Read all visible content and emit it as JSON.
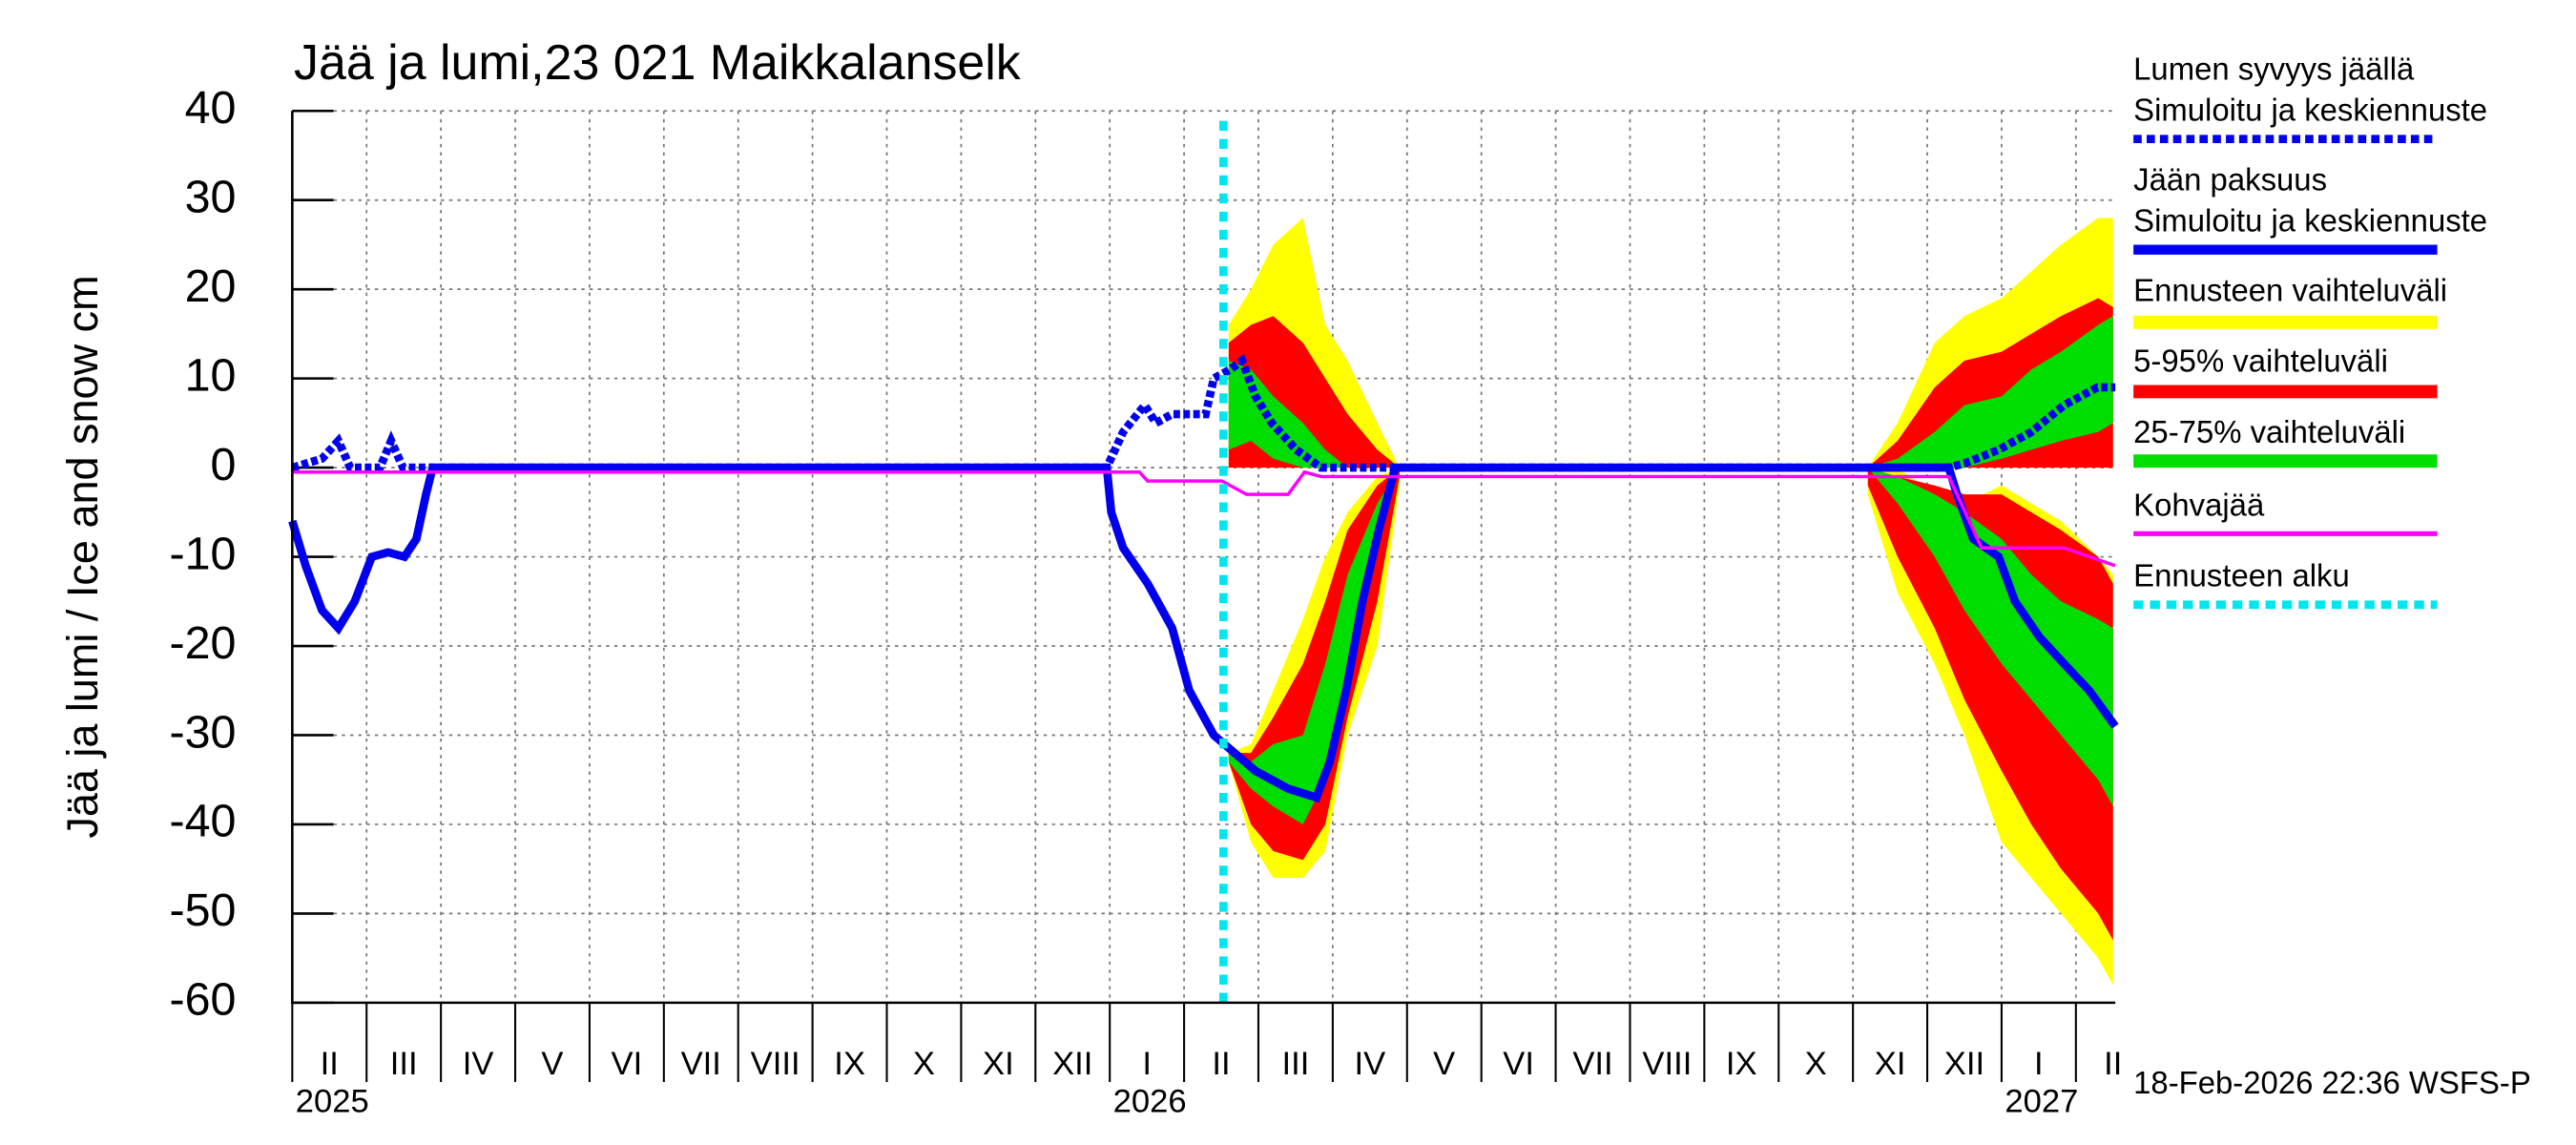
{
  "chart_data": {
    "type": "ice-snow",
    "title": "Jää ja lumi,23 021 Maikkalanselk",
    "y_label": "Jää ja lumi / Ice and snow    cm",
    "footer": "18-Feb-2026 22:36 WSFS-P",
    "xlim": [
      0,
      24.53
    ],
    "xticks": [
      0,
      1,
      2,
      3,
      4,
      5,
      6,
      7,
      8,
      9,
      10,
      11,
      12,
      13,
      14,
      15,
      16,
      17,
      18,
      19,
      20,
      21,
      22,
      23,
      24
    ],
    "months": [
      "II",
      "III",
      "IV",
      "V",
      "VI",
      "VII",
      "VIII",
      "IX",
      "X",
      "XI",
      "XII",
      "I",
      "II",
      "III",
      "IV",
      "V",
      "VI",
      "VII",
      "VIII",
      "IX",
      "X",
      "XI",
      "XII",
      "I",
      "II"
    ],
    "years": [
      {
        "value": 0,
        "label": "2025"
      },
      {
        "value": 11,
        "label": "2026"
      },
      {
        "value": 23,
        "label": "2027"
      }
    ],
    "ylim": [
      -60,
      40
    ],
    "yticks": [
      -60,
      -50,
      -40,
      -30,
      -20,
      -10,
      0,
      10,
      20,
      30,
      40
    ],
    "grid": true,
    "bands": [
      {
        "name": "Ennusteen vaihteluväli",
        "color": "#ffff00",
        "periods": [
          {
            "x": [
              12.6,
              12.9,
              13.2,
              13.6,
              13.9,
              14.2,
              14.6,
              14.9
            ],
            "snow_high": [
              16,
              20,
              25,
              28,
              16,
              12,
              5,
              0
            ],
            "snow_low": [
              0,
              0,
              0,
              0,
              0,
              0,
              0,
              0
            ],
            "ice_high": [
              -32,
              -31,
              -25,
              -17,
              -10,
              -5,
              -1,
              0
            ],
            "ice_low": [
              -33,
              -42,
              -46,
              -46,
              -43,
              -30,
              -20,
              -2
            ]
          },
          {
            "x": [
              21.2,
              21.6,
              22.1,
              22.5,
              23.0,
              23.4,
              23.8,
              24.3,
              24.5
            ],
            "snow_high": [
              0,
              5,
              14,
              17,
              19,
              22,
              25,
              28,
              28
            ],
            "snow_low": [
              0,
              0,
              0,
              0,
              0,
              0,
              0,
              0,
              0
            ],
            "ice_high": [
              0,
              0,
              -3,
              -4,
              -2,
              -4,
              -6,
              -10,
              -12
            ],
            "ice_low": [
              -3,
              -14,
              -22,
              -30,
              -42,
              -46,
              -50,
              -55,
              -58
            ]
          }
        ]
      },
      {
        "name": "5-95% vaihteluväli",
        "color": "#ff0000",
        "periods": [
          {
            "x": [
              12.6,
              12.9,
              13.2,
              13.6,
              13.9,
              14.2,
              14.6,
              14.9
            ],
            "snow_high": [
              14,
              16,
              17,
              14,
              10,
              6,
              2,
              0
            ],
            "snow_low": [
              0,
              0,
              0,
              0,
              0,
              0,
              0,
              0
            ],
            "ice_high": [
              -32,
              -32,
              -28,
              -22,
              -15,
              -7,
              -2,
              0
            ],
            "ice_low": [
              -33,
              -40,
              -43,
              -44,
              -40,
              -28,
              -15,
              -1
            ]
          },
          {
            "x": [
              21.2,
              21.6,
              22.1,
              22.5,
              23.0,
              23.4,
              23.8,
              24.3,
              24.5
            ],
            "snow_high": [
              0,
              3,
              9,
              12,
              13,
              15,
              17,
              19,
              18
            ],
            "snow_low": [
              0,
              0,
              0,
              0,
              0,
              0,
              0,
              0,
              0
            ],
            "ice_high": [
              0,
              -1,
              -2,
              -3,
              -3,
              -5,
              -7,
              -10,
              -13
            ],
            "ice_low": [
              -2,
              -10,
              -18,
              -26,
              -34,
              -40,
              -45,
              -50,
              -53
            ]
          }
        ]
      },
      {
        "name": "25-75% vaihteluväli",
        "color": "#00dd00",
        "periods": [
          {
            "x": [
              12.6,
              12.9,
              13.2,
              13.6,
              13.9,
              14.2,
              14.6,
              14.9
            ],
            "snow_high": [
              12,
              11,
              8,
              5,
              2,
              0,
              0,
              0
            ],
            "snow_low": [
              2,
              3,
              1,
              0,
              0,
              0,
              0,
              0
            ],
            "ice_high": [
              -32,
              -33,
              -31,
              -30,
              -22,
              -12,
              -4,
              0
            ],
            "ice_low": [
              -33,
              -36,
              -38,
              -40,
              -35,
              -22,
              -8,
              0
            ]
          },
          {
            "x": [
              21.2,
              21.6,
              22.1,
              22.5,
              23.0,
              23.4,
              23.8,
              24.3,
              24.5
            ],
            "snow_high": [
              0,
              1,
              4,
              7,
              8,
              11,
              13,
              16,
              17
            ],
            "snow_low": [
              0,
              0,
              0,
              0,
              1,
              2,
              3,
              4,
              5
            ],
            "ice_high": [
              0,
              -1,
              -3,
              -5,
              -8,
              -12,
              -15,
              -17,
              -18
            ],
            "ice_low": [
              0,
              -4,
              -10,
              -16,
              -22,
              -26,
              -30,
              -35,
              -38
            ]
          }
        ]
      }
    ],
    "series": [
      {
        "name": "Lumen syvyys jäällä",
        "note": "Simuloitu ja keskiennuste",
        "color": "#0000ee",
        "dashed": true,
        "x": [
          0,
          0.4,
          0.62,
          0.78,
          1.18,
          1.33,
          1.49,
          10.96,
          11.18,
          11.47,
          11.62,
          11.84,
          12.29,
          12.4,
          12.62,
          12.78,
          12.96,
          13.18,
          13.51,
          13.84,
          22.29,
          22.51,
          22.96,
          23.4,
          23.84,
          24.29,
          24.53
        ],
        "values": [
          0,
          1,
          3,
          0,
          0,
          3,
          0,
          0,
          4,
          7,
          5,
          6,
          6,
          10,
          11,
          12,
          8,
          5,
          2,
          0,
          0,
          0.5,
          2,
          4,
          7,
          9,
          9
        ]
      },
      {
        "name": "Jään paksuus",
        "note": "Simuloitu ja keskiennuste",
        "color": "#0000ee",
        "dashed": false,
        "x": [
          0,
          0.18,
          0.4,
          0.62,
          0.84,
          1.07,
          1.29,
          1.51,
          1.67,
          1.8,
          1.89,
          10.96,
          11.02,
          11.18,
          11.51,
          11.84,
          12.07,
          12.4,
          12.96,
          13.4,
          13.78,
          13.96,
          14.18,
          14.4,
          14.62,
          14.84,
          22.29,
          22.4,
          22.62,
          22.96,
          23.18,
          23.51,
          23.84,
          24.18,
          24.53
        ],
        "values": [
          -6,
          -11,
          -16,
          -18,
          -15,
          -10,
          -9.5,
          -10,
          -8,
          -3,
          0,
          0,
          -5,
          -9,
          -13,
          -18,
          -25,
          -30,
          -34,
          -36,
          -37,
          -33,
          -25,
          -15,
          -7,
          0,
          0,
          -3,
          -8,
          -10,
          -15,
          -19,
          -22,
          -25,
          -29
        ]
      },
      {
        "name": "Kohvajää",
        "color": "#ff00ff",
        "dashed": false,
        "x": [
          0,
          11.4,
          11.51,
          12.51,
          12.84,
          13.4,
          13.62,
          13.84,
          22.29,
          22.73,
          23.84,
          24.53
        ],
        "values": [
          -0.5,
          -0.5,
          -1.5,
          -1.5,
          -3,
          -3,
          -0.5,
          -1,
          -1,
          -9,
          -9,
          -11
        ]
      }
    ],
    "forecast_start": {
      "name": "Ennusteen alku",
      "color": "#00e5ee",
      "x": 12.53
    }
  }
}
